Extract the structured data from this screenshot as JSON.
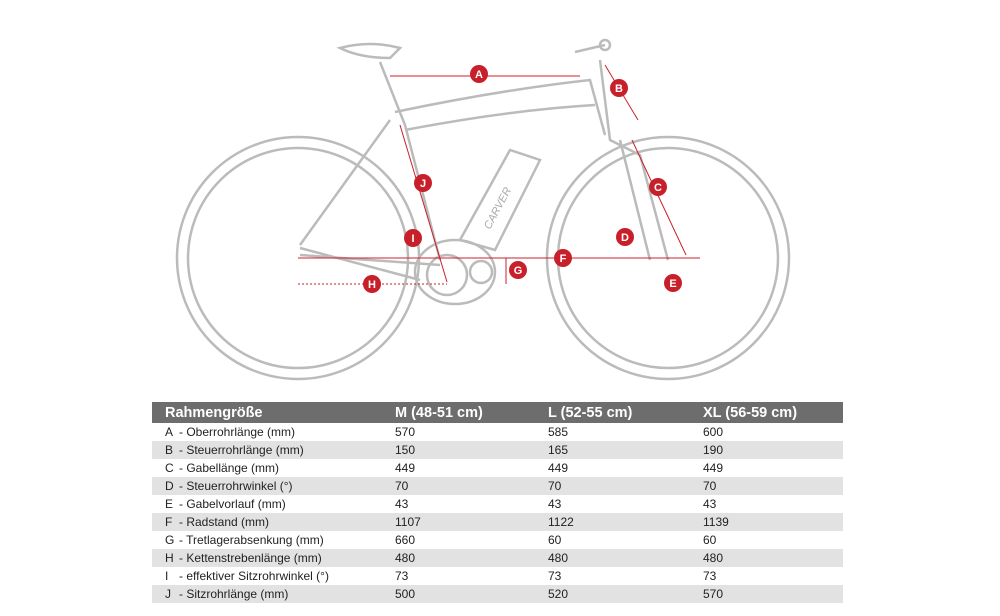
{
  "diagram": {
    "brand_on_battery": "CARVER",
    "markers": [
      "A",
      "B",
      "C",
      "D",
      "E",
      "F",
      "G",
      "H",
      "I",
      "J"
    ]
  },
  "table": {
    "headers": [
      "Rahmengröße",
      "M  (48-51 cm)",
      "L  (52-55 cm)",
      "XL  (56-59 cm)"
    ],
    "rows": [
      {
        "letter": "A",
        "label": "- Oberrohrlänge (mm)",
        "m": "570",
        "l": "585",
        "xl": "600"
      },
      {
        "letter": "B",
        "label": "- Steuerrohrlänge (mm)",
        "m": "150",
        "l": "165",
        "xl": "190"
      },
      {
        "letter": "C",
        "label": "- Gabellänge (mm)",
        "m": "449",
        "l": "449",
        "xl": "449"
      },
      {
        "letter": "D",
        "label": "- Steuerrohrwinkel (°)",
        "m": "70",
        "l": "70",
        "xl": "70"
      },
      {
        "letter": "E",
        "label": "- Gabelvorlauf (mm)",
        "m": "43",
        "l": "43",
        "xl": "43"
      },
      {
        "letter": "F",
        "label": "- Radstand (mm)",
        "m": "1107",
        "l": "1122",
        "xl": "1139"
      },
      {
        "letter": "G",
        "label": "- Tretlagerabsenkung (mm)",
        "m": "660",
        "l": "60",
        "xl": "60"
      },
      {
        "letter": "H",
        "label": "- Kettenstrebenlänge (mm)",
        "m": "480",
        "l": "480",
        "xl": "480"
      },
      {
        "letter": "I",
        "label": "- effektiver Sitzrohrwinkel (°)",
        "m": "73",
        "l": "73",
        "xl": "73"
      },
      {
        "letter": "J",
        "label": "- Sitzrohrlänge (mm)",
        "m": "500",
        "l": "520",
        "xl": "570"
      }
    ]
  },
  "colors": {
    "accent": "#c8202a",
    "frame": "#b8b8b8",
    "header": "#6d6d6d",
    "stripe": "#e2e2e2"
  }
}
